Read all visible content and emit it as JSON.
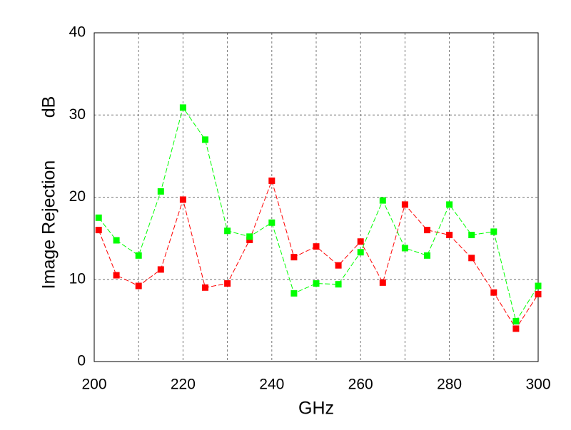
{
  "chart_data": {
    "type": "line",
    "xlabel": "GHz",
    "ylabel": "Image Rejection",
    "ylabel_unit": "dB",
    "x": [
      201,
      205,
      210,
      215,
      220,
      225,
      230,
      235,
      240,
      245,
      250,
      255,
      260,
      265,
      270,
      275,
      280,
      285,
      290,
      295,
      300
    ],
    "series": [
      {
        "color": "#ff0000",
        "values": [
          16.0,
          10.5,
          9.2,
          11.2,
          19.7,
          9.0,
          9.5,
          14.8,
          22.0,
          12.7,
          14.0,
          11.7,
          14.6,
          9.6,
          19.1,
          16.0,
          15.4,
          12.6,
          8.4,
          4.0,
          8.2
        ]
      },
      {
        "color": "#00ff00",
        "values": [
          17.5,
          14.75,
          12.9,
          20.7,
          30.9,
          27.0,
          15.9,
          15.2,
          16.9,
          8.3,
          9.5,
          9.4,
          13.3,
          19.6,
          13.8,
          12.9,
          19.1,
          15.4,
          15.8,
          4.9,
          9.2
        ]
      }
    ],
    "xlim": [
      200,
      300
    ],
    "xticks": [
      200,
      220,
      240,
      260,
      280,
      300
    ],
    "xminor": [
      210,
      230,
      250,
      270,
      290
    ],
    "ylim": [
      0,
      40
    ],
    "yticks": [
      0,
      10,
      20,
      30,
      40
    ],
    "grid": true
  }
}
